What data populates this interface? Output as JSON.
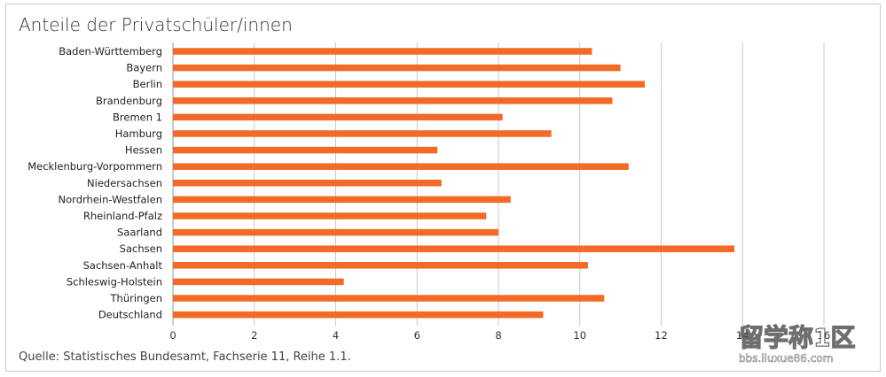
{
  "title": "Anteile der Privatschüler/innen",
  "source": "Quelle: Statistisches Bundesamt, Fachserie 11, Reihe 1.1.",
  "colors": {
    "bar": "#f26a25",
    "grid": "#c9c9c9",
    "axis": "#9a9a9a"
  },
  "chart_data": {
    "type": "bar",
    "orientation": "horizontal",
    "categories": [
      "Baden-Württemberg",
      "Bayern",
      "Berlin",
      "Brandenburg",
      "Bremen 1",
      "Hamburg",
      "Hessen",
      "Mecklenburg-Vorpommern",
      "Niedersachsen",
      "Nordrhein-Westfalen",
      "Rheinland-Pfalz",
      "Saarland",
      "Sachsen",
      "Sachsen-Anhalt",
      "Schleswig-Holstein",
      "Thüringen",
      "Deutschland"
    ],
    "values": [
      10.3,
      11.0,
      11.6,
      10.8,
      8.1,
      9.3,
      6.5,
      11.2,
      6.6,
      8.3,
      7.7,
      8.0,
      13.8,
      10.2,
      4.2,
      10.6,
      9.1
    ],
    "xlim": [
      0,
      16
    ],
    "xticks": [
      "0",
      "2",
      "4",
      "6",
      "8",
      "10",
      "12",
      "14",
      "16"
    ],
    "grid": true
  },
  "watermark": {
    "text": "留学称1区",
    "subtext": "bbs.liuxue86.com"
  }
}
